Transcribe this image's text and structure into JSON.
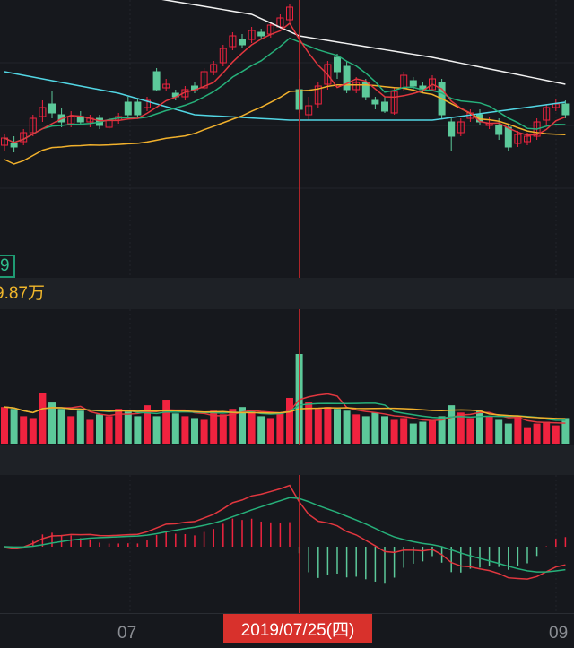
{
  "colors": {
    "up": "#f0233f",
    "down": "#5cc99a",
    "ma5": "#e2373f",
    "ma10": "#26b07a",
    "ma20": "#f2b12c",
    "ma_cyan": "#52d6e4",
    "ma_white": "#f2f2f2",
    "crosshair": "#c0262a"
  },
  "indicator_legend": "9",
  "volume_readout": "9.87万",
  "x_axis": {
    "ticks": [
      "07",
      "09"
    ],
    "crosshair_date": "2019/07/25(四)"
  },
  "crosshair_index": 31,
  "candles": [
    [
      11.9,
      12.3,
      12.5,
      11.6
    ],
    [
      12.0,
      11.8,
      12.4,
      11.5
    ],
    [
      12.1,
      12.6,
      12.8,
      11.9
    ],
    [
      12.6,
      13.4,
      13.6,
      12.4
    ],
    [
      13.5,
      14.0,
      14.4,
      13.2
    ],
    [
      14.2,
      13.7,
      14.9,
      13.4
    ],
    [
      13.6,
      13.2,
      14.0,
      12.9
    ],
    [
      13.1,
      13.5,
      13.8,
      12.9
    ],
    [
      13.5,
      13.2,
      13.8,
      13.0
    ],
    [
      13.2,
      13.4,
      13.6,
      12.9
    ],
    [
      13.4,
      13.0,
      13.6,
      12.8
    ],
    [
      12.9,
      13.3,
      13.5,
      12.8
    ],
    [
      13.3,
      13.5,
      13.7,
      13.1
    ],
    [
      14.3,
      13.6,
      14.6,
      13.5
    ],
    [
      14.3,
      13.6,
      14.5,
      13.4
    ],
    [
      14.0,
      14.4,
      14.6,
      13.8
    ],
    [
      16.0,
      15.0,
      16.2,
      14.9
    ],
    [
      15.1,
      15.3,
      15.6,
      14.9
    ],
    [
      14.8,
      14.6,
      15.0,
      14.4
    ],
    [
      14.6,
      15.0,
      15.2,
      14.4
    ],
    [
      15.2,
      15.0,
      15.4,
      14.8
    ],
    [
      15.1,
      16.0,
      16.2,
      15.0
    ],
    [
      16.0,
      16.4,
      16.6,
      15.8
    ],
    [
      16.5,
      17.3,
      17.5,
      16.3
    ],
    [
      17.4,
      18.0,
      18.2,
      17.2
    ],
    [
      17.8,
      17.5,
      18.1,
      17.3
    ],
    [
      17.8,
      18.3,
      18.5,
      17.6
    ],
    [
      18.2,
      18.0,
      18.4,
      17.8
    ],
    [
      18.1,
      18.6,
      18.8,
      17.9
    ],
    [
      18.5,
      19.0,
      19.2,
      18.4
    ],
    [
      18.9,
      19.6,
      19.8,
      18.8
    ],
    [
      15.0,
      13.9,
      15.6,
      13.7
    ],
    [
      13.6,
      14.1,
      14.6,
      13.3
    ],
    [
      14.2,
      15.2,
      15.4,
      14.0
    ],
    [
      15.3,
      16.4,
      16.6,
      15.0
    ],
    [
      16.8,
      16.0,
      17.0,
      15.6
    ],
    [
      16.3,
      15.0,
      16.6,
      14.8
    ],
    [
      15.0,
      15.4,
      15.7,
      14.8
    ],
    [
      15.4,
      14.6,
      15.6,
      14.4
    ],
    [
      14.4,
      14.2,
      14.6,
      13.9
    ],
    [
      14.3,
      13.8,
      14.6,
      13.7
    ],
    [
      13.7,
      14.9,
      15.1,
      13.6
    ],
    [
      15.1,
      15.8,
      16.0,
      14.9
    ],
    [
      15.5,
      15.2,
      15.7,
      15.0
    ],
    [
      15.2,
      15.0,
      15.4,
      14.8
    ],
    [
      15.0,
      15.6,
      15.8,
      14.9
    ],
    [
      15.4,
      13.6,
      15.6,
      13.4
    ],
    [
      13.2,
      12.4,
      13.4,
      11.6
    ],
    [
      12.6,
      13.2,
      13.4,
      12.4
    ],
    [
      13.4,
      13.7,
      13.9,
      13.2
    ],
    [
      13.6,
      13.2,
      13.9,
      13.0
    ],
    [
      13.0,
      13.1,
      13.5,
      12.8
    ],
    [
      13.0,
      12.5,
      13.4,
      12.2
    ],
    [
      12.9,
      11.8,
      13.0,
      11.6
    ],
    [
      12.0,
      12.5,
      12.7,
      11.8
    ],
    [
      12.1,
      12.4,
      12.6,
      11.9
    ],
    [
      12.4,
      13.2,
      13.4,
      12.2
    ],
    [
      13.3,
      14.0,
      14.2,
      13.0
    ],
    [
      14.0,
      14.2,
      14.5,
      13.8
    ],
    [
      14.2,
      13.6,
      14.4,
      13.4
    ]
  ],
  "volumes": [
    40,
    38,
    30,
    28,
    55,
    45,
    38,
    30,
    36,
    26,
    32,
    30,
    38,
    35,
    30,
    42,
    30,
    48,
    33,
    30,
    28,
    26,
    36,
    32,
    38,
    40,
    36,
    30,
    28,
    34,
    50,
    98,
    46,
    38,
    40,
    38,
    36,
    32,
    30,
    34,
    30,
    26,
    28,
    22,
    24,
    26,
    30,
    42,
    34,
    28,
    36,
    30,
    26,
    22,
    30,
    18,
    22,
    24,
    20,
    28
  ],
  "ma_white": [
    [
      0,
      21.5
    ],
    [
      26,
      19.2
    ],
    [
      31,
      18.0
    ],
    [
      45,
      16.8
    ],
    [
      59,
      15.3
    ]
  ],
  "ma_cyan": [
    [
      0,
      16.0
    ],
    [
      12,
      14.8
    ],
    [
      20,
      13.6
    ],
    [
      30,
      13.3
    ],
    [
      45,
      13.3
    ],
    [
      59,
      14.3
    ]
  ]
}
